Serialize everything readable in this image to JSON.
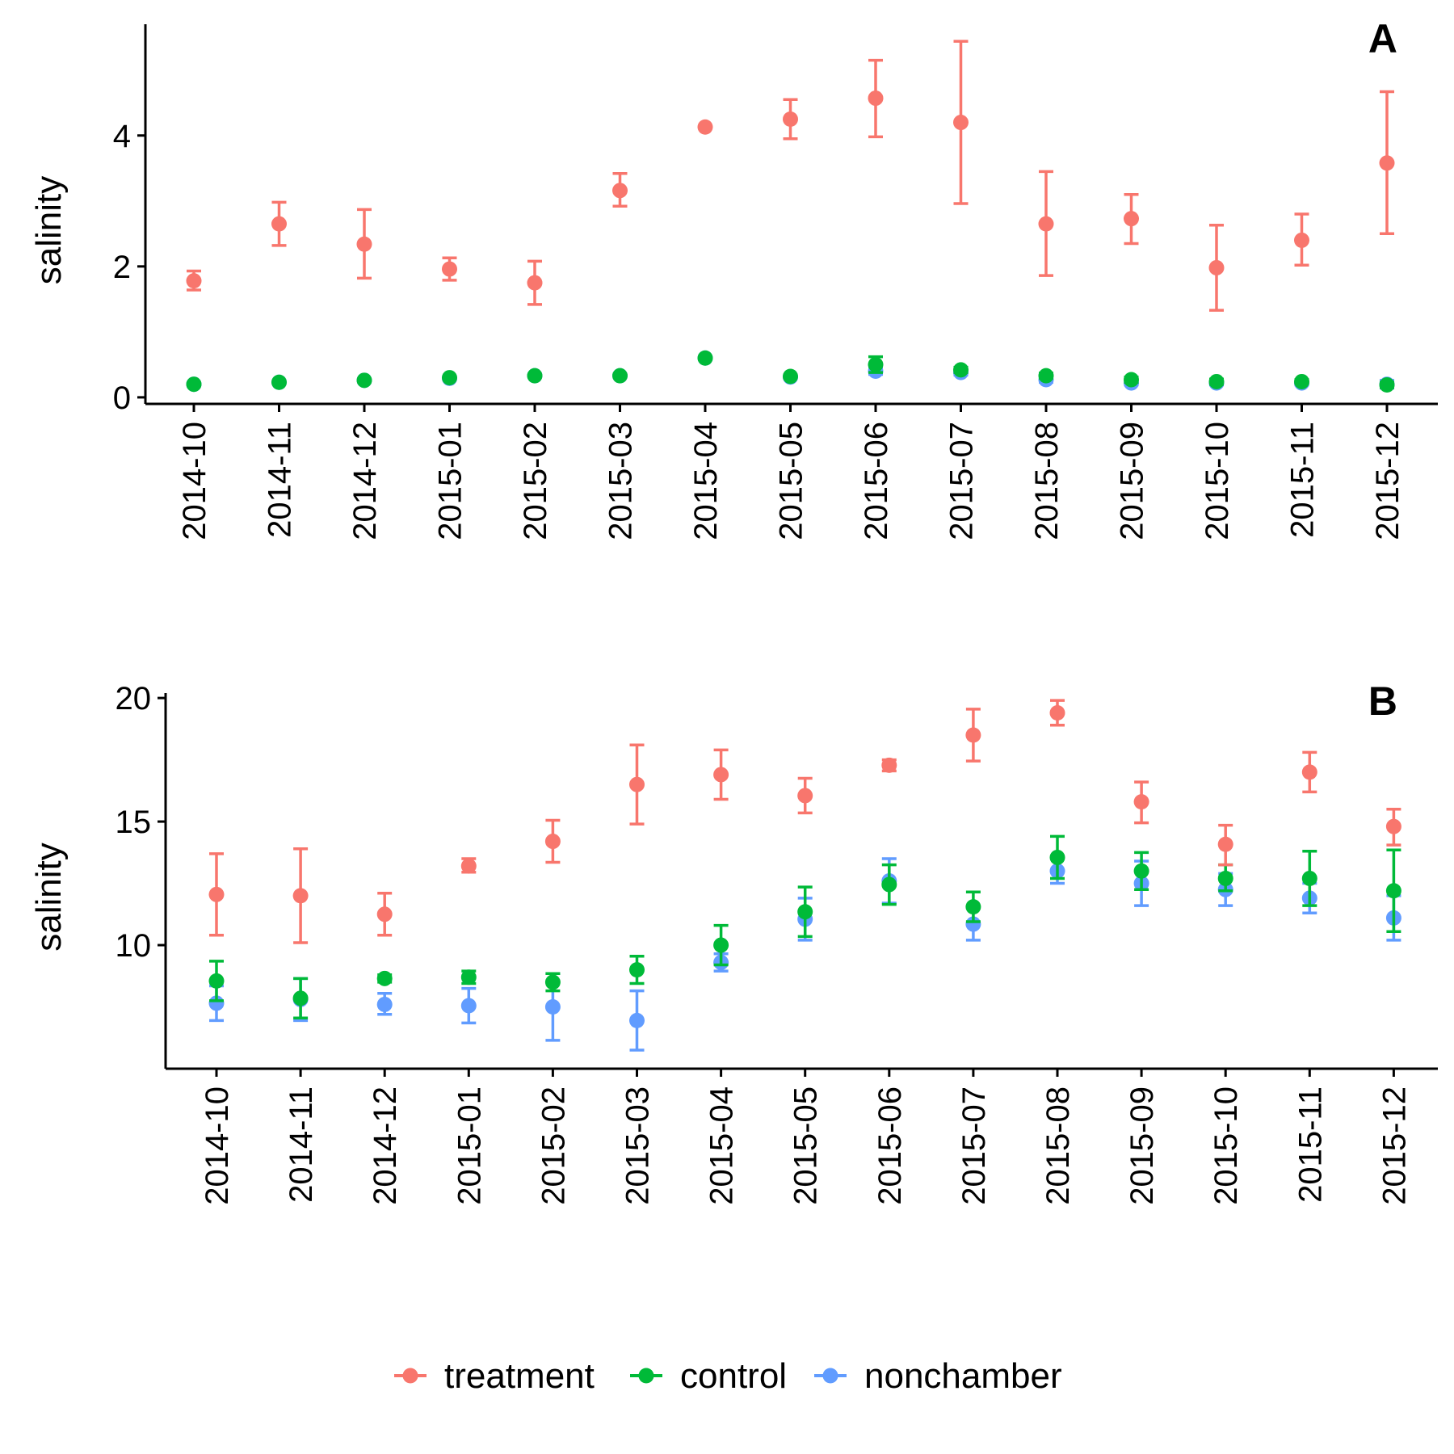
{
  "colors": {
    "treatment": "#F8766D",
    "control": "#00BA38",
    "nonchamber": "#619CFF",
    "axis": "#000000"
  },
  "legend": {
    "placement": "bottom",
    "items": [
      {
        "key": "treatment",
        "label": "treatment"
      },
      {
        "key": "control",
        "label": "control"
      },
      {
        "key": "nonchamber",
        "label": "nonchamber"
      }
    ]
  },
  "chart_data": [
    {
      "type": "scatter",
      "panel_label": "A",
      "ylabel": "salinity",
      "xlabel": "",
      "ylim": [
        -0.1,
        5.7
      ],
      "yticks": [
        0,
        2,
        4
      ],
      "grid": false,
      "categories": [
        "2014-10",
        "2014-11",
        "2014-12",
        "2015-01",
        "2015-02",
        "2015-03",
        "2015-04",
        "2015-05",
        "2015-06",
        "2015-07",
        "2015-08",
        "2015-09",
        "2015-10",
        "2015-11",
        "2015-12"
      ],
      "series": [
        {
          "name": "treatment",
          "values": [
            1.78,
            2.65,
            2.34,
            1.96,
            1.75,
            3.16,
            4.13,
            4.25,
            4.57,
            4.2,
            2.65,
            2.73,
            1.98,
            2.4,
            3.58
          ],
          "lower": [
            1.64,
            2.32,
            1.82,
            1.79,
            1.42,
            2.92,
            4.13,
            3.95,
            3.98,
            2.96,
            1.86,
            2.35,
            1.33,
            2.02,
            2.5
          ],
          "upper": [
            1.93,
            2.98,
            2.87,
            2.13,
            2.08,
            3.42,
            4.13,
            4.55,
            5.15,
            5.44,
            3.45,
            3.1,
            2.63,
            2.8,
            4.67
          ]
        },
        {
          "name": "control",
          "values": [
            0.2,
            0.23,
            0.26,
            0.3,
            0.33,
            0.33,
            0.6,
            0.32,
            0.5,
            0.42,
            0.33,
            0.27,
            0.24,
            0.24,
            0.19
          ],
          "lower": [
            0.18,
            0.21,
            0.24,
            0.28,
            0.31,
            0.31,
            0.58,
            0.3,
            0.38,
            0.38,
            0.29,
            0.23,
            0.2,
            0.21,
            0.15
          ],
          "upper": [
            0.22,
            0.25,
            0.28,
            0.32,
            0.35,
            0.35,
            0.62,
            0.34,
            0.62,
            0.46,
            0.37,
            0.31,
            0.28,
            0.27,
            0.23
          ]
        },
        {
          "name": "nonchamber",
          "values": [
            0.2,
            0.23,
            0.26,
            0.29,
            0.33,
            0.33,
            0.6,
            0.31,
            0.4,
            0.38,
            0.27,
            0.22,
            0.22,
            0.22,
            0.2
          ],
          "lower": [
            0.18,
            0.21,
            0.24,
            0.27,
            0.31,
            0.31,
            0.58,
            0.29,
            0.35,
            0.34,
            0.23,
            0.19,
            0.19,
            0.19,
            0.14
          ],
          "upper": [
            0.22,
            0.25,
            0.28,
            0.31,
            0.35,
            0.35,
            0.62,
            0.33,
            0.45,
            0.42,
            0.31,
            0.25,
            0.25,
            0.25,
            0.26
          ]
        }
      ]
    },
    {
      "type": "scatter",
      "panel_label": "B",
      "ylabel": "salinity",
      "xlabel": "",
      "ylim": [
        5.0,
        20.2
      ],
      "yticks": [
        10,
        15,
        20
      ],
      "grid": false,
      "categories": [
        "2014-10",
        "2014-11",
        "2014-12",
        "2015-01",
        "2015-02",
        "2015-03",
        "2015-04",
        "2015-05",
        "2015-06",
        "2015-07",
        "2015-08",
        "2015-09",
        "2015-10",
        "2015-11",
        "2015-12"
      ],
      "series": [
        {
          "name": "treatment",
          "values": [
            12.05,
            12.0,
            11.25,
            13.2,
            14.2,
            16.5,
            16.9,
            16.05,
            17.28,
            18.5,
            19.4,
            15.8,
            14.08,
            17.0,
            14.8
          ],
          "lower": [
            10.4,
            10.1,
            10.4,
            12.95,
            13.35,
            14.9,
            15.9,
            15.35,
            17.05,
            17.45,
            18.9,
            14.95,
            13.25,
            16.2,
            14.05
          ],
          "upper": [
            13.7,
            13.9,
            12.1,
            13.5,
            15.05,
            18.1,
            17.9,
            16.75,
            17.5,
            19.55,
            19.9,
            16.6,
            14.85,
            17.8,
            15.5
          ]
        },
        {
          "name": "control",
          "values": [
            8.55,
            7.85,
            8.65,
            8.7,
            8.5,
            9.0,
            10.0,
            11.35,
            12.45,
            11.55,
            13.55,
            13.0,
            12.7,
            12.7,
            12.2
          ],
          "lower": [
            7.75,
            7.05,
            8.5,
            8.45,
            8.15,
            8.45,
            9.2,
            10.35,
            11.65,
            10.95,
            12.7,
            12.25,
            12.2,
            11.6,
            10.55
          ],
          "upper": [
            9.35,
            8.65,
            8.8,
            8.95,
            8.85,
            9.55,
            10.8,
            12.35,
            13.25,
            12.15,
            14.4,
            13.75,
            13.25,
            13.8,
            13.85
          ]
        },
        {
          "name": "nonchamber",
          "values": [
            7.65,
            7.8,
            7.6,
            7.55,
            7.5,
            6.95,
            9.3,
            11.05,
            12.6,
            10.85,
            13.0,
            12.5,
            12.25,
            11.9,
            11.1
          ],
          "lower": [
            6.95,
            6.95,
            7.2,
            6.85,
            6.15,
            5.75,
            8.95,
            10.2,
            11.7,
            10.2,
            12.5,
            11.6,
            11.6,
            11.3,
            10.2
          ],
          "upper": [
            8.35,
            8.65,
            8.05,
            8.25,
            8.85,
            8.15,
            9.65,
            11.9,
            13.5,
            11.5,
            13.5,
            13.4,
            12.9,
            12.5,
            12.0
          ]
        }
      ]
    }
  ]
}
